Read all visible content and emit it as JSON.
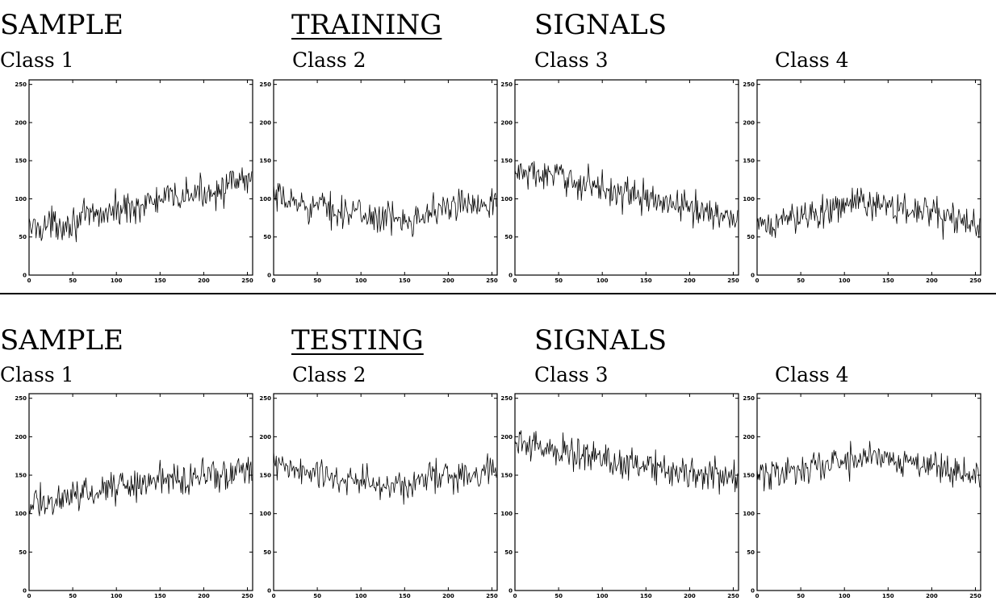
{
  "panels": [
    {
      "heading_words": [
        "SAMPLE",
        "TRAINING",
        "SIGNALS"
      ],
      "class_labels": [
        "Class 1",
        "Class 2",
        "Class 3",
        "Class 4"
      ]
    },
    {
      "heading_words": [
        "SAMPLE",
        "TESTING",
        "SIGNALS"
      ],
      "class_labels": [
        "Class 1",
        "Class 2",
        "Class 3",
        "Class 4"
      ]
    }
  ],
  "chart_data": [
    {
      "type": "line",
      "xlim": [
        0,
        256
      ],
      "ylim": [
        0,
        256
      ],
      "xticks": [
        "0",
        "50",
        "100",
        "150",
        "200",
        "250"
      ],
      "yticks": [
        "0",
        "50",
        "100",
        "150",
        "200",
        "250"
      ],
      "series": [
        {
          "trend": [
            [
              0,
              62
            ],
            [
              50,
              70
            ],
            [
              100,
              85
            ],
            [
              150,
              98
            ],
            [
              200,
              108
            ],
            [
              256,
              125
            ]
          ],
          "noise": 13
        }
      ]
    },
    {
      "type": "line",
      "xlim": [
        0,
        256
      ],
      "ylim": [
        0,
        256
      ],
      "xticks": [
        "0",
        "50",
        "100",
        "150",
        "200",
        "250"
      ],
      "yticks": [
        "0",
        "50",
        "100",
        "150",
        "200",
        "250"
      ],
      "series": [
        {
          "trend": [
            [
              0,
              100
            ],
            [
              50,
              90
            ],
            [
              100,
              80
            ],
            [
              140,
              72
            ],
            [
              200,
              88
            ],
            [
              256,
              100
            ]
          ],
          "noise": 13
        }
      ]
    },
    {
      "type": "line",
      "xlim": [
        0,
        256
      ],
      "ylim": [
        0,
        256
      ],
      "xticks": [
        "0",
        "50",
        "100",
        "150",
        "200",
        "250"
      ],
      "yticks": [
        "0",
        "50",
        "100",
        "150",
        "200",
        "250"
      ],
      "series": [
        {
          "trend": [
            [
              0,
              135
            ],
            [
              50,
              128
            ],
            [
              100,
              115
            ],
            [
              150,
              100
            ],
            [
              200,
              88
            ],
            [
              256,
              75
            ]
          ],
          "noise": 13
        }
      ]
    },
    {
      "type": "line",
      "xlim": [
        0,
        256
      ],
      "ylim": [
        0,
        256
      ],
      "xticks": [
        "0",
        "50",
        "100",
        "150",
        "200",
        "250"
      ],
      "yticks": [
        "0",
        "50",
        "100",
        "150",
        "200",
        "250"
      ],
      "series": [
        {
          "trend": [
            [
              0,
              60
            ],
            [
              50,
              78
            ],
            [
              100,
              92
            ],
            [
              130,
              95
            ],
            [
              200,
              80
            ],
            [
              256,
              65
            ]
          ],
          "noise": 13
        }
      ]
    },
    {
      "type": "line",
      "xlim": [
        0,
        256
      ],
      "ylim": [
        0,
        256
      ],
      "xticks": [
        "0",
        "50",
        "100",
        "150",
        "200",
        "250"
      ],
      "yticks": [
        "0",
        "50",
        "100",
        "150",
        "200",
        "250"
      ],
      "series": [
        {
          "trend": [
            [
              0,
              112
            ],
            [
              50,
              122
            ],
            [
              100,
              135
            ],
            [
              150,
              145
            ],
            [
              200,
              150
            ],
            [
              256,
              155
            ]
          ],
          "noise": 13
        }
      ]
    },
    {
      "type": "line",
      "xlim": [
        0,
        256
      ],
      "ylim": [
        0,
        256
      ],
      "xticks": [
        "0",
        "50",
        "100",
        "150",
        "200",
        "250"
      ],
      "yticks": [
        "0",
        "50",
        "100",
        "150",
        "200",
        "250"
      ],
      "series": [
        {
          "trend": [
            [
              0,
              162
            ],
            [
              50,
              150
            ],
            [
              100,
              140
            ],
            [
              140,
              135
            ],
            [
              200,
              150
            ],
            [
              256,
              160
            ]
          ],
          "noise": 13
        }
      ]
    },
    {
      "type": "line",
      "xlim": [
        0,
        256
      ],
      "ylim": [
        0,
        256
      ],
      "xticks": [
        "0",
        "50",
        "100",
        "150",
        "200",
        "250"
      ],
      "yticks": [
        "0",
        "50",
        "100",
        "150",
        "200",
        "250"
      ],
      "series": [
        {
          "trend": [
            [
              0,
              192
            ],
            [
              50,
              182
            ],
            [
              100,
              172
            ],
            [
              150,
              162
            ],
            [
              200,
              155
            ],
            [
              256,
              145
            ]
          ],
          "noise": 13
        }
      ]
    },
    {
      "type": "line",
      "xlim": [
        0,
        256
      ],
      "ylim": [
        0,
        256
      ],
      "xticks": [
        "0",
        "50",
        "100",
        "150",
        "200",
        "250"
      ],
      "yticks": [
        "0",
        "50",
        "100",
        "150",
        "200",
        "250"
      ],
      "series": [
        {
          "trend": [
            [
              0,
              150
            ],
            [
              50,
              158
            ],
            [
              100,
              168
            ],
            [
              130,
              175
            ],
            [
              200,
              165
            ],
            [
              256,
              148
            ]
          ],
          "noise": 13
        }
      ]
    }
  ]
}
